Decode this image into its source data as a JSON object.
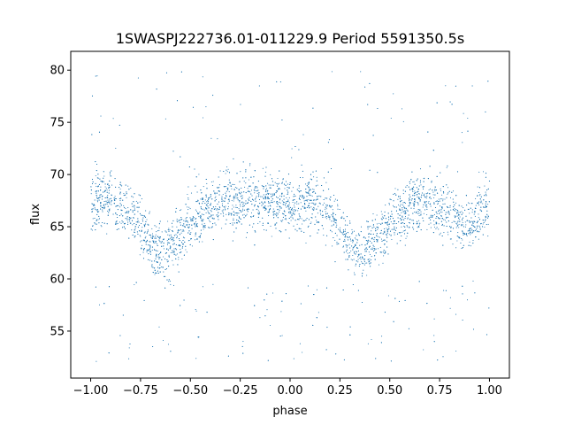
{
  "chart_data": {
    "type": "scatter",
    "title": "1SWASPJ222736.01-011229.9 Period 5591350.5s",
    "xlabel": "phase",
    "ylabel": "flux",
    "xlim": [
      -1.1,
      1.1
    ],
    "ylim": [
      50.5,
      81.8
    ],
    "xticks": [
      -1.0,
      -0.75,
      -0.5,
      -0.25,
      0.0,
      0.25,
      0.5,
      0.75,
      1.0
    ],
    "xtick_labels": [
      "−1.00",
      "−0.75",
      "−0.50",
      "−0.25",
      "0.00",
      "0.25",
      "0.50",
      "0.75",
      "1.00"
    ],
    "yticks": [
      55,
      60,
      65,
      70,
      75,
      80
    ],
    "ytick_labels": [
      "55",
      "60",
      "65",
      "70",
      "75",
      "80"
    ],
    "grid": false,
    "marker_color": "#1f77b4",
    "series": [
      {
        "phase_range": [
          -1.0,
          1.0
        ],
        "trend": {
          "x": [
            -1.0,
            -0.9,
            -0.8,
            -0.7,
            -0.65,
            -0.6,
            -0.5,
            -0.4,
            -0.3,
            -0.2,
            -0.1,
            0.0,
            0.1,
            0.2,
            0.3,
            0.35,
            0.4,
            0.5,
            0.6,
            0.7,
            0.8,
            0.9,
            1.0
          ],
          "y": [
            67.5,
            67.8,
            66.5,
            63.5,
            62.5,
            63.0,
            65.5,
            67.0,
            67.5,
            67.5,
            67.5,
            67.0,
            67.5,
            66.5,
            63.5,
            62.5,
            63.0,
            65.5,
            67.0,
            67.5,
            66.0,
            65.0,
            67.5
          ]
        },
        "scatter_band": [
          -3,
          3
        ]
      }
    ]
  }
}
